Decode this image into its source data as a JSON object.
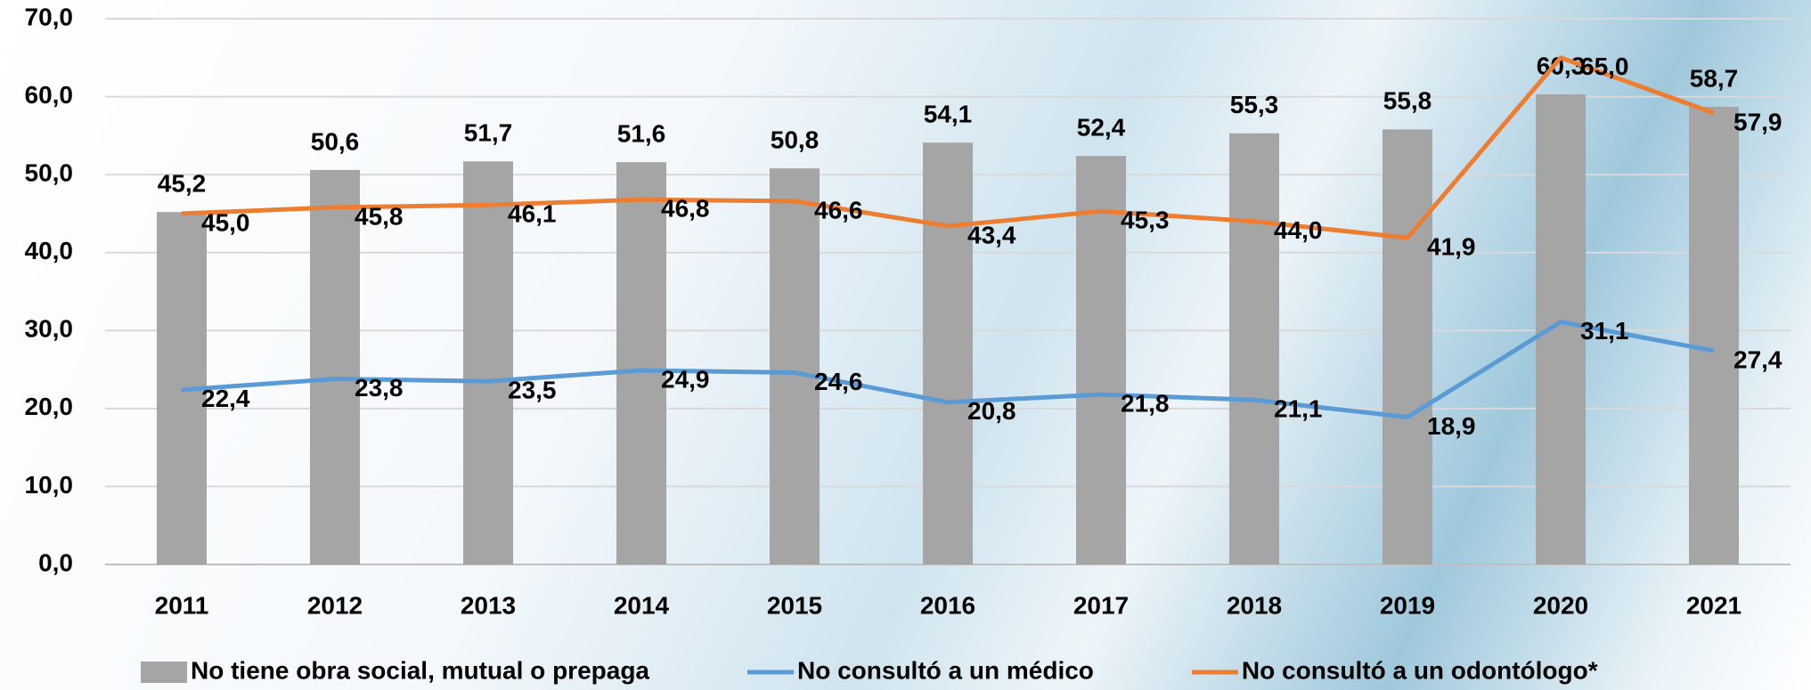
{
  "chart_data": {
    "type": "bar",
    "categories": [
      "2011",
      "2012",
      "2013",
      "2014",
      "2015",
      "2016",
      "2017",
      "2018",
      "2019",
      "2020",
      "2021"
    ],
    "series": [
      {
        "name": "No tiene obra social, mutual o prepaga",
        "type": "bar",
        "color": "#a5a5a5",
        "values": [
          45.2,
          50.6,
          51.7,
          51.6,
          50.8,
          54.1,
          52.4,
          55.3,
          55.8,
          60.3,
          58.7
        ],
        "value_labels": [
          "45,2",
          "50,6",
          "51,7",
          "51,6",
          "50,8",
          "54,1",
          "52,4",
          "55,3",
          "55,8",
          "60,3",
          "58,7"
        ]
      },
      {
        "name": "No consultó a un médico",
        "type": "line",
        "color": "#5b9bd5",
        "values": [
          22.4,
          23.8,
          23.5,
          24.9,
          24.6,
          20.8,
          21.8,
          21.1,
          18.9,
          31.1,
          27.4
        ],
        "value_labels": [
          "22,4",
          "23,8",
          "23,5",
          "24,9",
          "24,6",
          "20,8",
          "21,8",
          "21,1",
          "18,9",
          "31,1",
          "27,4"
        ]
      },
      {
        "name": "No consultó a un odontólogo*",
        "type": "line",
        "color": "#ed7d31",
        "values": [
          45.0,
          45.8,
          46.1,
          46.8,
          46.6,
          43.4,
          45.3,
          44.0,
          41.9,
          65.0,
          57.9
        ],
        "value_labels": [
          "45,0",
          "45,8",
          "46,1",
          "46,8",
          "46,6",
          "43,4",
          "45,3",
          "44,0",
          "41,9",
          "65,0",
          "57,9"
        ]
      }
    ],
    "ylim": [
      0,
      70
    ],
    "yticks": [
      {
        "value": 0,
        "label": "0,0"
      },
      {
        "value": 10,
        "label": "10,0"
      },
      {
        "value": 20,
        "label": "20,0"
      },
      {
        "value": 30,
        "label": "30,0"
      },
      {
        "value": 40,
        "label": "40,0"
      },
      {
        "value": 50,
        "label": "50,0"
      },
      {
        "value": 60,
        "label": "60,0"
      },
      {
        "value": 70,
        "label": "70,0"
      }
    ],
    "grid": true,
    "legend": "bottom"
  }
}
